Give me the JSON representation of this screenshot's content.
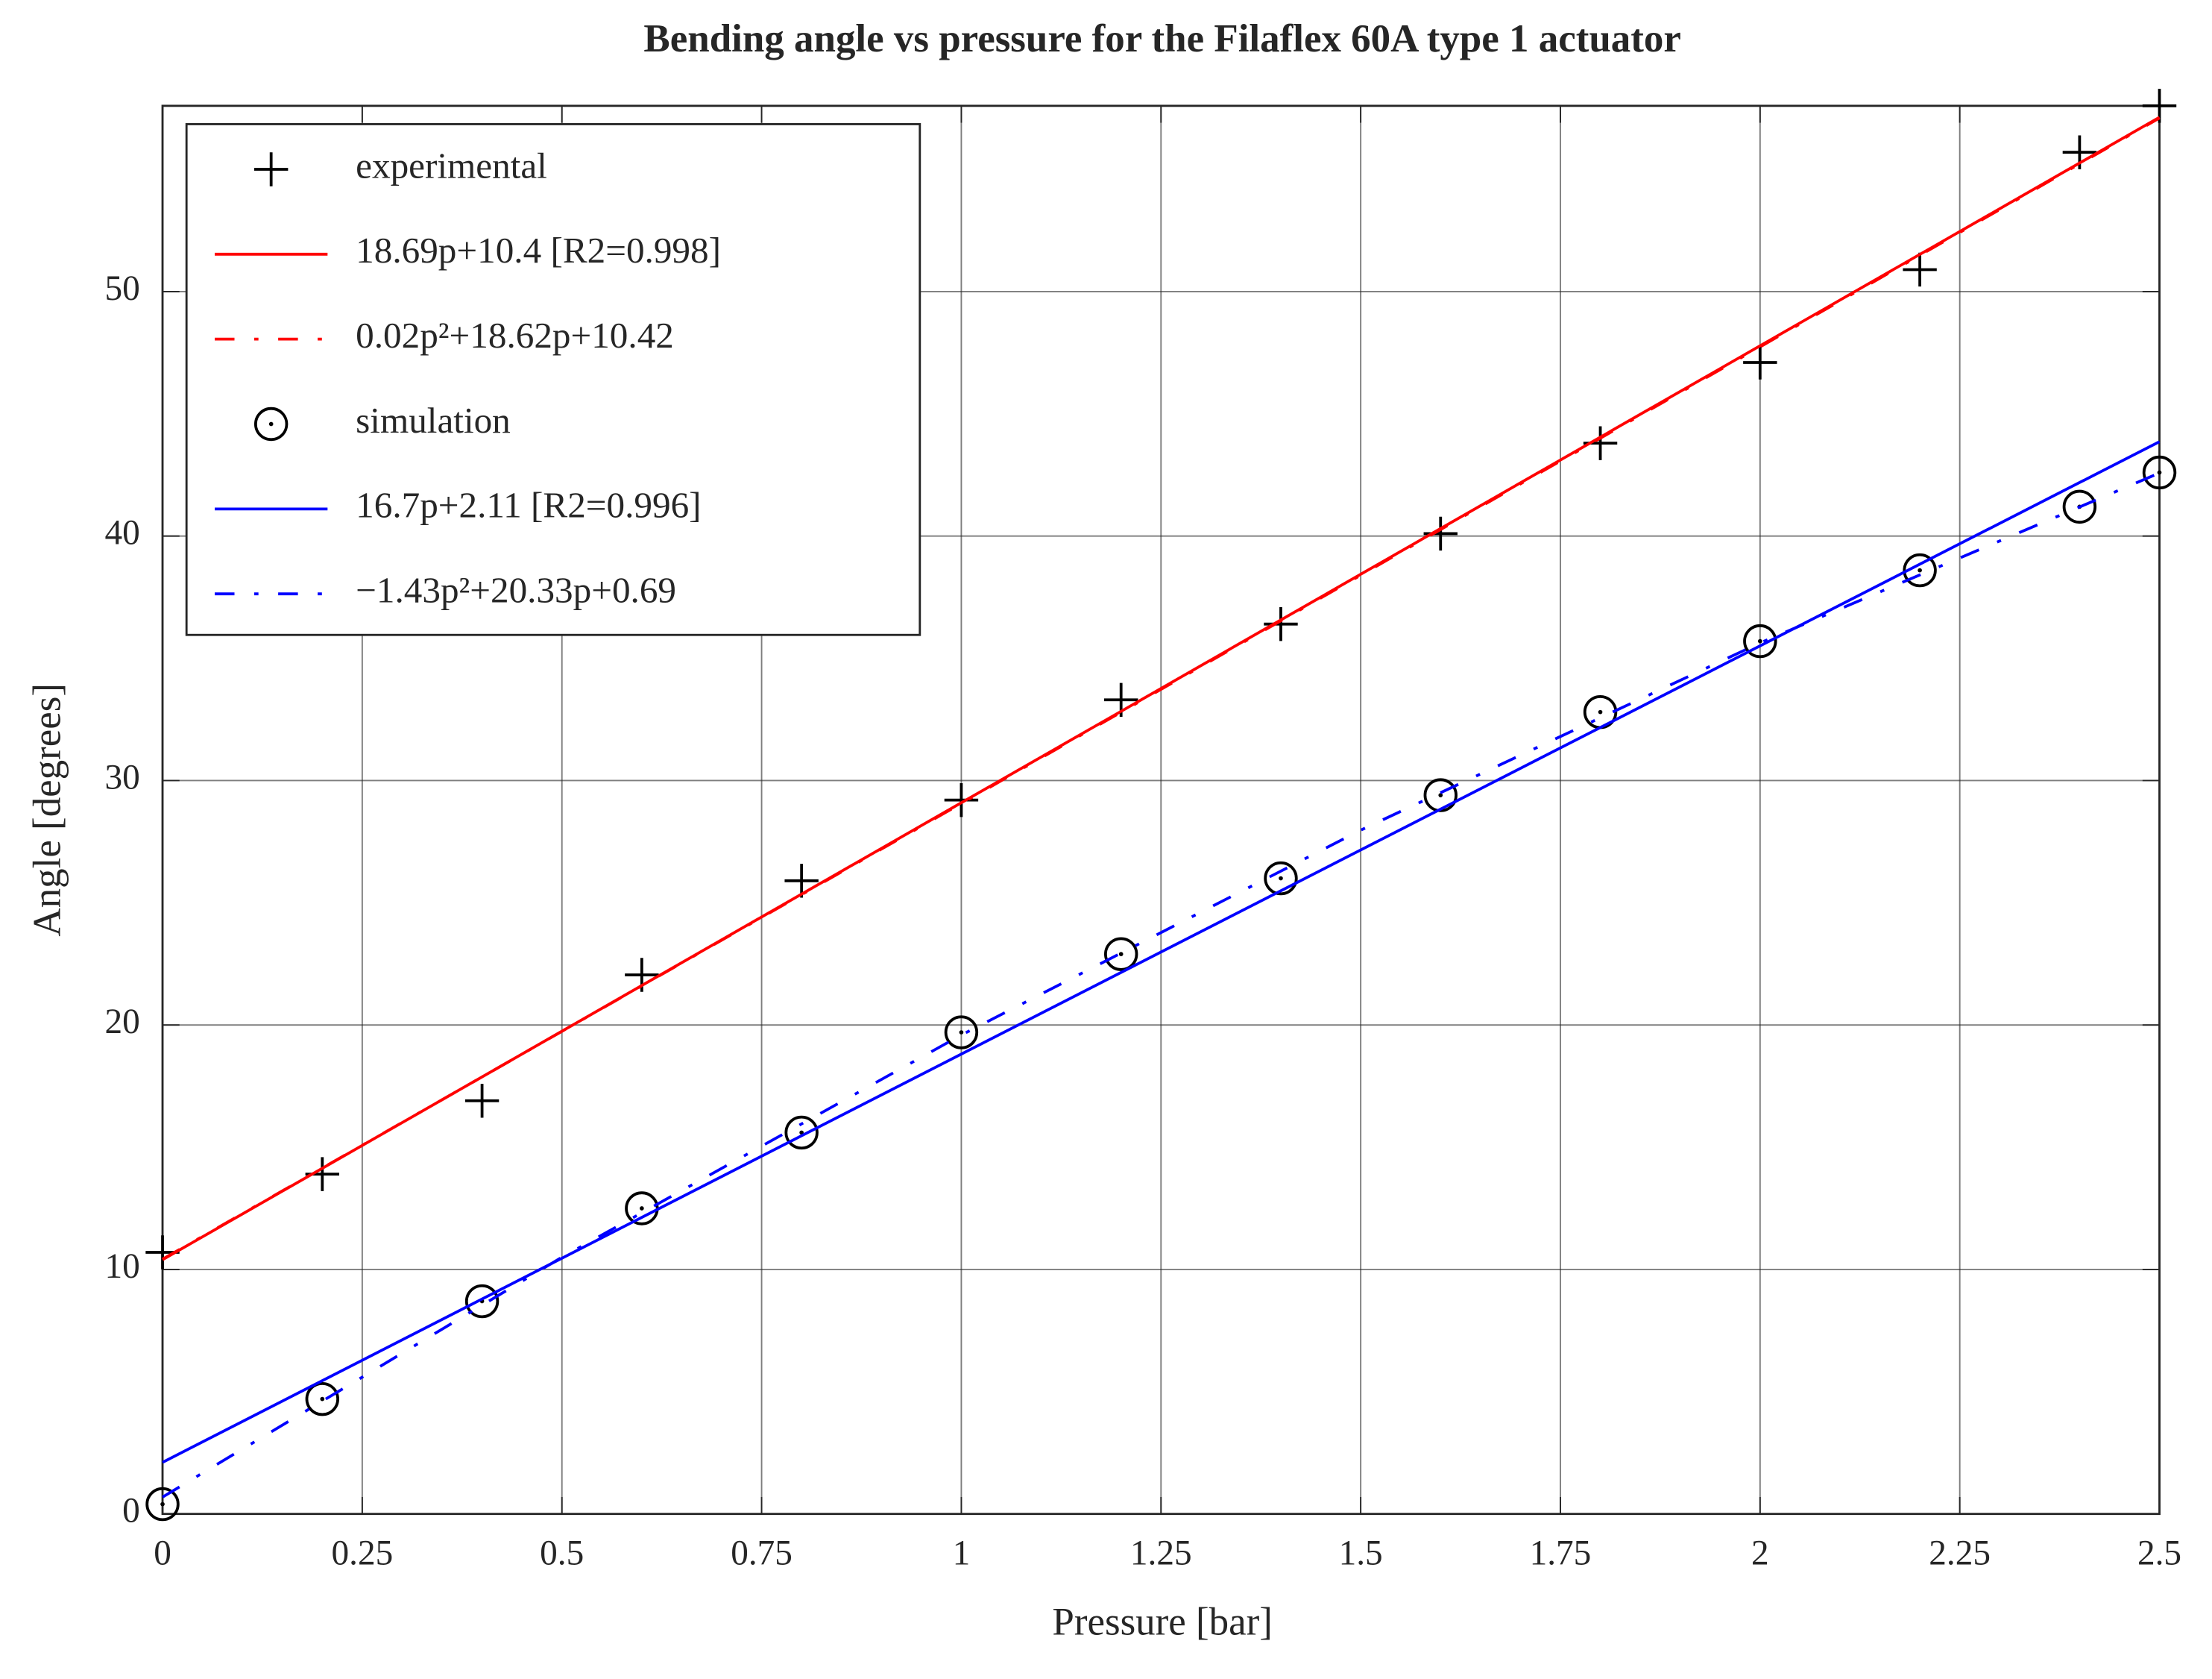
{
  "chart_data": {
    "type": "scatter",
    "title": "Bending angle vs pressure for the Filaflex 60A type 1 actuator",
    "x_label": "Pressure [bar]",
    "y_label": "Angle [degrees]",
    "xlim": [
      0,
      2.5
    ],
    "ylim": [
      0,
      57.6
    ],
    "xticks": [
      0,
      0.25,
      0.5,
      0.75,
      1,
      1.25,
      1.5,
      1.75,
      2,
      2.25,
      2.5
    ],
    "yticks": [
      0,
      10,
      20,
      30,
      40,
      50
    ],
    "grid": true,
    "legend": "northwest",
    "series": [
      {
        "name": "experimental",
        "color": "#000000",
        "marker": "plus",
        "x": [
          0,
          0.2,
          0.4,
          0.6,
          0.8,
          1.0,
          1.2,
          1.4,
          1.6,
          1.8,
          2.0,
          2.2,
          2.4,
          2.5
        ],
        "values": [
          10.7,
          13.9,
          16.9,
          22.05,
          25.9,
          29.2,
          33.3,
          36.4,
          40.1,
          43.8,
          47.1,
          50.9,
          55.7,
          57.6
        ]
      },
      {
        "name": "18.69p+10.4 [R2=0.998]",
        "color": "#ff0000",
        "line": "solid",
        "x": [
          0,
          2.5
        ],
        "values": [
          10.4,
          57.13
        ]
      },
      {
        "name": "0.02p²+18.62p+10.42",
        "color": "#ff0000",
        "line": "dashdot",
        "x": [
          0,
          0.5,
          1,
          1.5,
          2,
          2.5
        ],
        "values": [
          10.42,
          19.74,
          29.06,
          38.4,
          47.74,
          57.1
        ]
      },
      {
        "name": "simulation",
        "color": "#000000",
        "marker": "circle",
        "x": [
          0,
          0.2,
          0.4,
          0.6,
          0.8,
          1.0,
          1.2,
          1.4,
          1.6,
          1.8,
          2.0,
          2.2,
          2.4,
          2.5
        ],
        "values": [
          0.4,
          4.7,
          8.7,
          12.5,
          15.6,
          19.7,
          22.9,
          26.0,
          29.4,
          32.8,
          35.7,
          38.6,
          41.2,
          42.6
        ]
      },
      {
        "name": "16.7p+2.11 [R2=0.996]",
        "color": "#0000ff",
        "line": "solid",
        "x": [
          0,
          2.5
        ],
        "values": [
          2.11,
          43.86
        ]
      },
      {
        "name": "−1.43p²+20.33p+0.69",
        "color": "#0000ff",
        "line": "dashdot",
        "x": [
          0,
          0.5,
          1,
          1.5,
          2,
          2.5
        ],
        "values": [
          0.69,
          10.5,
          19.59,
          27.97,
          35.63,
          42.58
        ]
      }
    ]
  }
}
